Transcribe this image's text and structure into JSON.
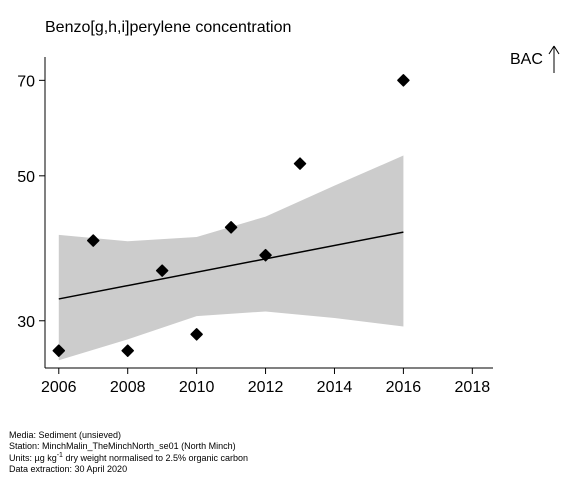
{
  "chart_data": {
    "type": "scatter",
    "title": "Benzo[g,h,i]perylene concentration",
    "xlabel": "",
    "ylabel": "",
    "y_scale": "log",
    "xlim": [
      2005.6,
      2018.6
    ],
    "ylim": [
      25.4,
      76.0
    ],
    "x_ticks": [
      2006,
      2008,
      2010,
      2012,
      2014,
      2016,
      2018
    ],
    "y_ticks": [
      30,
      50,
      70
    ],
    "grid": false,
    "points": [
      {
        "x": 2006,
        "y": 27.0
      },
      {
        "x": 2007,
        "y": 39.8
      },
      {
        "x": 2008,
        "y": 27.0
      },
      {
        "x": 2009,
        "y": 35.8
      },
      {
        "x": 2010,
        "y": 28.6
      },
      {
        "x": 2011,
        "y": 41.7
      },
      {
        "x": 2012,
        "y": 37.8
      },
      {
        "x": 2013,
        "y": 52.2
      },
      {
        "x": 2016,
        "y": 70.0
      }
    ],
    "trend": {
      "x": [
        2006,
        2016
      ],
      "fit": [
        32.4,
        41.0
      ],
      "ci_x": [
        2006,
        2008,
        2010,
        2012,
        2014,
        2016
      ],
      "ci_upper": [
        40.6,
        39.7,
        40.3,
        43.3,
        48.3,
        53.7
      ],
      "ci_lower": [
        26.1,
        28.1,
        30.5,
        31.0,
        30.3,
        29.4
      ]
    },
    "reference_marker": {
      "label": "BAC",
      "direction": "up"
    }
  },
  "footer": {
    "media": "Media: Sediment (unsieved)",
    "station": "Station: MinchMalin_TheMinchNorth_se01 (North Minch)",
    "units_prefix": "Units:  µg kg",
    "units_sup": "-1",
    "units_suffix": " dry weight normalised to 2.5% organic carbon",
    "extraction": "Data extraction: 30 April 2020"
  }
}
